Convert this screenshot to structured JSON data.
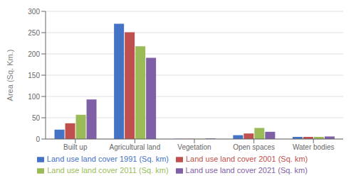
{
  "chart_data": {
    "type": "bar",
    "ylabel": "Area (Sq. Km.)",
    "categories": [
      "Built up",
      "Agricultural land",
      "Vegetation",
      "Open spaces",
      "Water bodies"
    ],
    "series": [
      {
        "name": "Land use land cover 1991 (Sq. km)",
        "color": "#4472C4",
        "values": [
          22,
          271,
          0.5,
          9,
          5
        ]
      },
      {
        "name": "Land use land cover 2001 (Sq. km)",
        "color": "#C0504D",
        "values": [
          37,
          251,
          0.5,
          13,
          5
        ]
      },
      {
        "name": "Land use land cover 2011 (Sq. km)",
        "color": "#9BBB59",
        "values": [
          57,
          218,
          0.5,
          26,
          5
        ]
      },
      {
        "name": "Land use land cover 2021 (Sq. km)",
        "color": "#7F5FA5",
        "values": [
          93,
          191,
          1.5,
          17,
          6
        ]
      }
    ],
    "ylim": [
      0,
      300
    ],
    "yticks": [
      0,
      50,
      100,
      150,
      200,
      250,
      300
    ],
    "grid": true,
    "legend": "bottom"
  }
}
